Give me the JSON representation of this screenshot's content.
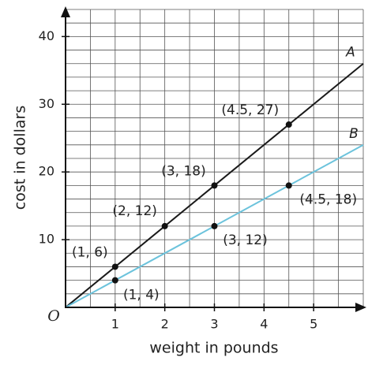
{
  "chart_data": {
    "type": "line",
    "x_label": "weight in pounds",
    "y_label": "cost in dollars",
    "origin_label": "O",
    "xlim": [
      0,
      6
    ],
    "ylim": [
      0,
      44
    ],
    "xticks": [
      1,
      2,
      3,
      4,
      5
    ],
    "yticks": [
      10,
      20,
      30,
      40
    ],
    "xgrid": [
      0.5,
      1,
      1.5,
      2,
      2.5,
      3,
      3.5,
      4,
      4.5,
      5,
      5.5,
      6
    ],
    "ygrid": [
      2,
      4,
      6,
      8,
      10,
      12,
      14,
      16,
      18,
      20,
      22,
      24,
      26,
      28,
      30,
      32,
      34,
      36,
      38,
      40,
      42,
      44
    ],
    "series": [
      {
        "name": "A",
        "color": "#1a1a1a",
        "line": {
          "x": [
            0,
            6
          ],
          "values": [
            0,
            36
          ]
        },
        "x": [
          1,
          2,
          3,
          4.5
        ],
        "values": [
          6,
          12,
          18,
          27
        ],
        "value_labels": [
          "(1, 6)",
          "(2, 12)",
          "(3, 18)",
          "(4.5, 27)"
        ]
      },
      {
        "name": "B",
        "color": "#6cc3dc",
        "line": {
          "x": [
            0,
            6
          ],
          "values": [
            0,
            24
          ]
        },
        "x": [
          1,
          3,
          4.5
        ],
        "values": [
          4,
          12,
          18
        ],
        "value_labels": [
          "(1, 4)",
          "(3, 12)",
          "(4.5, 18)"
        ]
      }
    ]
  }
}
